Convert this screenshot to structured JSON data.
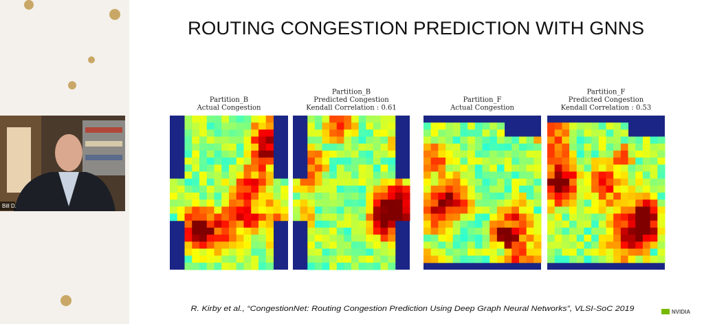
{
  "sidebar": {
    "participant": "Bill D."
  },
  "slide": {
    "title": "ROUTING CONGESTION PREDICTION WITH GNNS",
    "panels": [
      {
        "lines": [
          "Partition_B",
          "Actual Congestion"
        ]
      },
      {
        "lines": [
          "Partition_B",
          "Predicted Congestion",
          "Kendall Correlation : 0.61"
        ]
      },
      {
        "lines": [
          "Partition_F",
          "Actual Congestion"
        ]
      },
      {
        "lines": [
          "Partition_F",
          "Predicted Congestion",
          "Kendall Correlation : 0.53"
        ]
      }
    ],
    "citation": "R. Kirby et al., “CongestionNet: Routing Congestion Prediction Using Deep Graph Neural Networks”, VLSI-SoC 2019",
    "logo": "NVIDIA"
  }
}
